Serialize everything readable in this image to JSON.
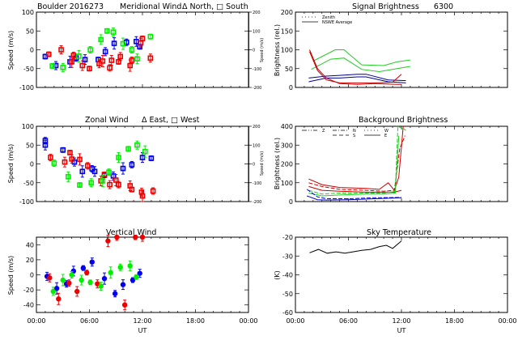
{
  "page_title": "Boulder 2016273",
  "chart_data": [
    {
      "id": "meridional",
      "type": "scatter",
      "title": "Meridional Wind",
      "title_prefix": "Boulder   2016273",
      "legend_text": "Δ North, □ South",
      "xlabel": "",
      "ylabel": "Speed (m/s)",
      "ylabel_right": "Speed (m/s)",
      "xlim_hours": [
        0,
        24
      ],
      "ylim": [
        -100,
        100
      ],
      "yticks": [
        "100",
        "50",
        "0",
        "-50",
        "-100"
      ],
      "ylim_right": [
        -200,
        200
      ],
      "yticks_right": [
        "200",
        "100",
        "0",
        "-100",
        "-200"
      ],
      "xticks": [],
      "series": [
        {
          "name": "blue",
          "color": "#0000ee",
          "points": [
            [
              1.0,
              -18
            ],
            [
              2.2,
              -42
            ],
            [
              3.8,
              -32
            ],
            [
              4.5,
              -22
            ],
            [
              5.5,
              -26
            ],
            [
              7.0,
              -26
            ],
            [
              7.8,
              -5
            ],
            [
              8.8,
              17
            ],
            [
              10.2,
              20
            ],
            [
              11.3,
              22
            ],
            [
              11.7,
              8
            ]
          ]
        },
        {
          "name": "red",
          "color": "#ee0000",
          "points": [
            [
              1.4,
              -12
            ],
            [
              2.8,
              0
            ],
            [
              4.0,
              -32
            ],
            [
              4.2,
              -15
            ],
            [
              5.2,
              -42
            ],
            [
              6.0,
              -50
            ],
            [
              7.1,
              -37
            ],
            [
              7.5,
              -30
            ],
            [
              8.3,
              -48
            ],
            [
              8.5,
              -28
            ],
            [
              9.3,
              -32
            ],
            [
              9.5,
              -18
            ],
            [
              10.6,
              -42
            ],
            [
              10.8,
              -28
            ],
            [
              11.8,
              18
            ],
            [
              12.0,
              30
            ],
            [
              12.9,
              -22
            ]
          ]
        },
        {
          "name": "green",
          "color": "#00ee00",
          "points": [
            [
              1.8,
              -43
            ],
            [
              3.0,
              -47
            ],
            [
              4.8,
              -17
            ],
            [
              6.1,
              0
            ],
            [
              7.3,
              27
            ],
            [
              8.0,
              50
            ],
            [
              8.7,
              47
            ],
            [
              9.8,
              16
            ],
            [
              10.8,
              0
            ],
            [
              11.4,
              -24
            ],
            [
              12.9,
              35
            ]
          ]
        }
      ]
    },
    {
      "id": "signal",
      "type": "line",
      "title": "Signal Brightness      6300",
      "xlabel": "",
      "ylabel": "Brightness (rel.)",
      "xlim_hours": [
        0,
        24
      ],
      "ylim": [
        0,
        200
      ],
      "yticks": [
        "200",
        "150",
        "100",
        "50",
        "0"
      ],
      "legend": [
        {
          "style": "dotted",
          "label": "Zenith"
        },
        {
          "style": "solid",
          "label": "NSWE Average"
        }
      ],
      "series": [
        {
          "name": "green-upper",
          "color": "#22cc22",
          "x": [
            2.0,
            4.5,
            5.5,
            7.5,
            10.0,
            11.5,
            13.0
          ],
          "values": [
            70,
            100,
            100,
            60,
            58,
            68,
            73
          ]
        },
        {
          "name": "green-lower",
          "color": "#22cc22",
          "x": [
            1.8,
            4.0,
            5.5,
            7.5,
            9.5,
            11.5,
            13.0
          ],
          "values": [
            48,
            75,
            78,
            48,
            42,
            50,
            56
          ]
        },
        {
          "name": "blue-upper",
          "color": "#000099",
          "x": [
            1.5,
            3.5,
            5.0,
            7.0,
            8.0,
            10.5,
            12.5
          ],
          "values": [
            25,
            30,
            32,
            35,
            35,
            20,
            18
          ]
        },
        {
          "name": "blue-lower",
          "color": "#000099",
          "x": [
            1.5,
            3.5,
            5.0,
            7.0,
            8.0,
            10.5,
            12.5
          ],
          "values": [
            15,
            25,
            25,
            28,
            28,
            15,
            12
          ]
        },
        {
          "name": "red-1",
          "color": "#cc0000",
          "x": [
            1.6,
            2.5,
            3.5,
            5.0,
            7.0,
            9.0,
            11.5,
            12.0
          ],
          "values": [
            100,
            50,
            25,
            10,
            8,
            10,
            8,
            8
          ]
        },
        {
          "name": "red-2",
          "color": "#cc0000",
          "x": [
            1.6,
            2.5,
            3.5,
            5.0,
            7.0,
            9.0,
            11.0,
            12.0
          ],
          "values": [
            95,
            45,
            20,
            12,
            12,
            12,
            14,
            35
          ]
        }
      ]
    },
    {
      "id": "zonal",
      "type": "scatter",
      "title": "Zonal Wind",
      "legend_text": "Δ East, □ West",
      "xlabel": "",
      "ylabel": "Speed (m/s)",
      "ylabel_right": "Speed (m/s)",
      "xlim_hours": [
        0,
        24
      ],
      "ylim": [
        -100,
        100
      ],
      "yticks": [
        "100",
        "50",
        "0",
        "-50",
        "-100"
      ],
      "ylim_right": [
        -200,
        200
      ],
      "yticks_right": [
        "200",
        "100",
        "0",
        "-100",
        "-200"
      ],
      "series": [
        {
          "name": "blue",
          "color": "#0000ee",
          "points": [
            [
              1.0,
              62
            ],
            [
              1.0,
              50
            ],
            [
              3.0,
              37
            ],
            [
              4.3,
              5
            ],
            [
              5.2,
              -20
            ],
            [
              6.3,
              -13
            ],
            [
              6.6,
              -20
            ],
            [
              7.7,
              -30
            ],
            [
              8.7,
              -32
            ],
            [
              9.8,
              -12
            ],
            [
              10.8,
              -2
            ],
            [
              12.0,
              17
            ],
            [
              13.0,
              15
            ]
          ]
        },
        {
          "name": "red",
          "color": "#ee0000",
          "points": [
            [
              1.6,
              17
            ],
            [
              3.2,
              5
            ],
            [
              3.8,
              30
            ],
            [
              4.0,
              13
            ],
            [
              4.9,
              12
            ],
            [
              5.8,
              -5
            ],
            [
              7.3,
              -45
            ],
            [
              7.7,
              -28
            ],
            [
              8.3,
              -55
            ],
            [
              9.0,
              -43
            ],
            [
              9.3,
              -55
            ],
            [
              10.6,
              -58
            ],
            [
              10.8,
              -68
            ],
            [
              11.9,
              -75
            ],
            [
              12.0,
              -85
            ],
            [
              13.2,
              -72
            ]
          ]
        },
        {
          "name": "green",
          "color": "#00ee00",
          "points": [
            [
              2.0,
              2
            ],
            [
              3.6,
              -34
            ],
            [
              4.9,
              -56
            ],
            [
              6.2,
              -50
            ],
            [
              7.5,
              -45
            ],
            [
              8.2,
              -22
            ],
            [
              9.3,
              17
            ],
            [
              10.4,
              40
            ],
            [
              11.4,
              50
            ],
            [
              12.3,
              33
            ]
          ]
        }
      ]
    },
    {
      "id": "background",
      "type": "line",
      "title": "Background Brightness",
      "xlabel": "",
      "ylabel": "Brightness (rel.)",
      "xlim_hours": [
        0,
        24
      ],
      "ylim": [
        0,
        400
      ],
      "yticks": [
        "400",
        "300",
        "200",
        "100",
        "0"
      ],
      "legend": [
        {
          "style": "dash-dot-dot",
          "label": "Z"
        },
        {
          "style": "dash-dot",
          "label": "N"
        },
        {
          "style": "dashed",
          "label": "S"
        },
        {
          "style": "dotted",
          "label": "W"
        },
        {
          "style": "solid",
          "label": "E"
        }
      ],
      "series": [
        {
          "name": "red-1",
          "color": "#cc0000",
          "x": [
            1.5,
            3,
            5,
            8,
            9.5,
            10.5,
            11.2,
            11.7,
            12.2
          ],
          "values": [
            120,
            90,
            75,
            70,
            65,
            100,
            60,
            130,
            400
          ]
        },
        {
          "name": "red-2",
          "color": "#cc0000",
          "x": [
            1.5,
            3,
            5,
            8,
            10,
            11.2,
            11.8,
            12.4
          ],
          "values": [
            100,
            80,
            65,
            60,
            55,
            60,
            280,
            350
          ]
        },
        {
          "name": "red-3",
          "color": "#cc0000",
          "x": [
            1.5,
            3,
            5,
            8,
            10,
            11.2,
            12.0
          ],
          "values": [
            80,
            60,
            55,
            50,
            50,
            50,
            60
          ]
        },
        {
          "name": "green-1",
          "color": "#22cc22",
          "x": [
            1.5,
            3,
            5,
            8,
            10,
            11.3,
            11.6,
            12.5
          ],
          "values": [
            60,
            40,
            45,
            45,
            45,
            55,
            400,
            380
          ]
        },
        {
          "name": "green-2",
          "color": "#22cc22",
          "x": [
            1.5,
            3,
            5,
            8,
            10,
            11.3,
            11.7
          ],
          "values": [
            45,
            30,
            35,
            40,
            40,
            45,
            350
          ]
        },
        {
          "name": "blue-1",
          "color": "#0000cc",
          "x": [
            1.3,
            2.5,
            3.5,
            6,
            9,
            12.0
          ],
          "values": [
            65,
            25,
            15,
            15,
            20,
            22
          ]
        },
        {
          "name": "blue-2",
          "color": "#0000cc",
          "x": [
            1.3,
            2.5,
            3.5,
            6,
            9,
            12.0
          ],
          "values": [
            30,
            10,
            8,
            10,
            15,
            20
          ]
        }
      ]
    },
    {
      "id": "vertical",
      "type": "scatter",
      "title": "Vertical Wind",
      "xlabel": "UT",
      "ylabel": "Speed (m/s)",
      "xlim_hours": [
        0,
        24
      ],
      "ylim": [
        -50,
        50
      ],
      "yticks": [
        "40",
        "20",
        "0",
        "-20",
        "-40"
      ],
      "ytick_values": [
        40,
        20,
        0,
        -20,
        -40
      ],
      "xticks": [
        "00:00",
        "06:00",
        "12:00",
        "18:00",
        "00:00"
      ],
      "series": [
        {
          "name": "blue",
          "color": "#0000ee",
          "points": [
            [
              1.2,
              -2
            ],
            [
              2.3,
              -18
            ],
            [
              3.4,
              -12
            ],
            [
              4.2,
              5
            ],
            [
              5.3,
              9
            ],
            [
              6.3,
              17
            ],
            [
              7.7,
              -5
            ],
            [
              8.9,
              -25
            ],
            [
              9.8,
              -13
            ],
            [
              10.9,
              -7
            ],
            [
              11.7,
              2
            ]
          ]
        },
        {
          "name": "red",
          "color": "#ee0000",
          "points": [
            [
              1.5,
              -4
            ],
            [
              2.5,
              -32
            ],
            [
              3.7,
              -11
            ],
            [
              4.6,
              -22
            ],
            [
              5.7,
              3
            ],
            [
              6.9,
              -12
            ],
            [
              8.1,
              45
            ],
            [
              9.1,
              50
            ],
            [
              10.0,
              -40
            ],
            [
              11.2,
              50
            ],
            [
              12.0,
              50
            ]
          ]
        },
        {
          "name": "green",
          "color": "#00ee00",
          "points": [
            [
              1.9,
              -22
            ],
            [
              3.0,
              -7
            ],
            [
              4.0,
              0
            ],
            [
              5.1,
              -7
            ],
            [
              6.1,
              -10
            ],
            [
              7.3,
              -15
            ],
            [
              8.4,
              3
            ],
            [
              9.5,
              10
            ],
            [
              10.6,
              12
            ],
            [
              11.3,
              -3
            ]
          ]
        }
      ]
    },
    {
      "id": "skytemp",
      "type": "line",
      "title": "Sky Temperature",
      "xlabel": "UT",
      "ylabel": "(K)",
      "xlim_hours": [
        0,
        24
      ],
      "ylim": [
        -60,
        -20
      ],
      "yticks": [
        "-20",
        "-30",
        "-40",
        "-50",
        "-60"
      ],
      "xticks": [
        "00:00",
        "06:00",
        "12:00",
        "18:00",
        "00:00"
      ],
      "series": [
        {
          "name": "sky-temp",
          "color": "#000000",
          "x": [
            1.6,
            2.6,
            3.6,
            4.6,
            5.6,
            6.5,
            7.5,
            8.5,
            9.5,
            10.3,
            11.0,
            12.0
          ],
          "values": [
            -28.3,
            -26.5,
            -28.5,
            -27.8,
            -28.5,
            -27.8,
            -27.0,
            -26.5,
            -25.0,
            -24.3,
            -26.0,
            -22.0
          ]
        }
      ]
    }
  ]
}
